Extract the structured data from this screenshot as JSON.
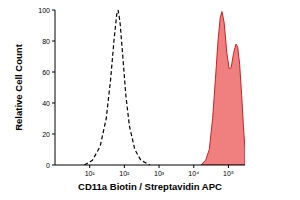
{
  "chart_data": {
    "type": "area",
    "x_label": "CD11a Biotin / Streptavidin APC",
    "y_label": "Relative Cell Count",
    "log": "x",
    "xlim": [
      1,
      300000
    ],
    "xticks": [
      {
        "value": 10,
        "label": "10¹"
      },
      {
        "value": 100,
        "label": "10²"
      },
      {
        "value": 1000,
        "label": "10³"
      },
      {
        "value": 10000,
        "label": "10⁴"
      },
      {
        "value": 100000,
        "label": "10⁵"
      }
    ],
    "ylim": [
      0,
      100
    ],
    "yticks": [
      0,
      20,
      40,
      60,
      80,
      100
    ],
    "series": [
      {
        "type": "line",
        "color": "#000000",
        "line_style": "dashed",
        "x": [
          7,
          12,
          20,
          30,
          40,
          50,
          60,
          66,
          75,
          90,
          110,
          140,
          200,
          300,
          550
        ],
        "values": [
          0,
          3,
          12,
          30,
          55,
          80,
          97,
          100,
          92,
          70,
          45,
          25,
          10,
          3,
          0
        ]
      },
      {
        "type": "area",
        "color": "#f08080",
        "x": [
          16000,
          22000,
          28000,
          35000,
          42000,
          50000,
          58000,
          65000,
          75000,
          90000,
          105000,
          120000,
          140000,
          165000,
          185000,
          210000,
          240000,
          270000,
          300000
        ],
        "values": [
          0,
          3,
          10,
          30,
          55,
          80,
          95,
          99,
          92,
          72,
          62,
          63,
          72,
          78,
          76,
          65,
          45,
          25,
          10
        ]
      }
    ]
  }
}
